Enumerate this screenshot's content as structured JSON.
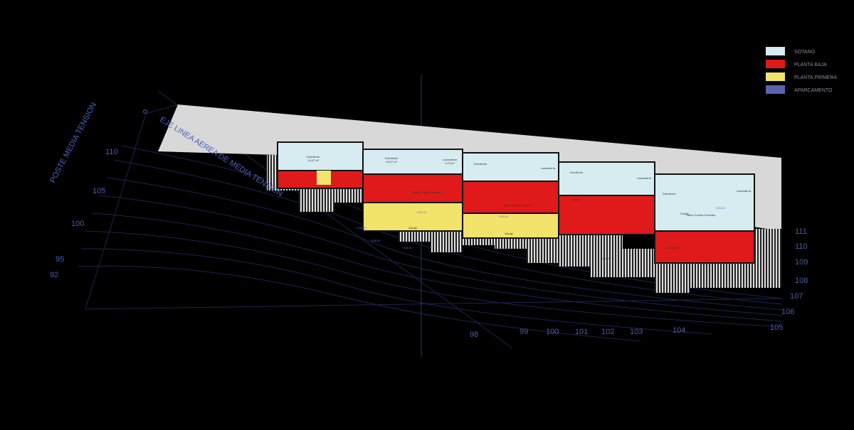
{
  "legend": [
    {
      "label": "SOTANO",
      "color": "#d6ecf0"
    },
    {
      "label": "PLANTA BAJA",
      "color": "#e01a1a"
    },
    {
      "label": "PLANTA PRIMERA",
      "color": "#f2e36a"
    },
    {
      "label": "APARCAMENTO",
      "color": "#5a63b0"
    }
  ],
  "annotations": {
    "poste": "POSTE MEDIA TENSION",
    "eje": "EJE LINEA AEREA DE MEDIA TENSION"
  },
  "contours_left": [
    "110",
    "105",
    "100",
    "95",
    "92"
  ],
  "contours_bottom": [
    "98",
    "99",
    "100",
    "101",
    "102",
    "103",
    "104",
    "105"
  ],
  "contours_right": [
    "111",
    "110",
    "109",
    "108",
    "107",
    "106"
  ],
  "rooms": {
    "dormitorio": "Dormitorio",
    "area_dorm": "14,07 m²",
    "lavanderia": "Lavandería",
    "area_lav": "3,73 m²",
    "bano": "Baño",
    "pasillo": "Pasillo",
    "salon": "Salón Cocina Comedor",
    "garaje": "Garaje",
    "level_111": "+111,00",
    "level_108": "+108,00",
    "level_106": "+106,00",
    "level_105": "+105,00"
  }
}
